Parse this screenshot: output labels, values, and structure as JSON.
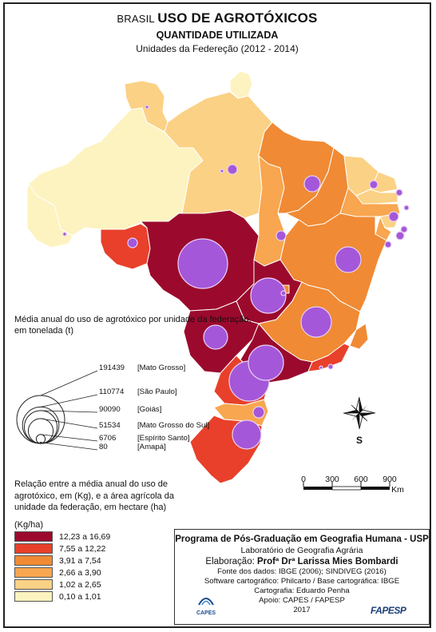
{
  "header": {
    "title_prefix": "BRASIL",
    "title_main": "USO DE AGROTÓXICOS",
    "subtitle": "QUANTIDADE UTILIZADA",
    "period": "Unidades da Federeção (2012 - 2014)"
  },
  "circle_legend": {
    "title": "Média anual do uso de agrotóxico por unidade da federação, em tonelada (t)",
    "entries": [
      {
        "value": 191439,
        "value_text": "191439",
        "label": "[Mato Grosso]"
      },
      {
        "value": 110774,
        "value_text": "110774",
        "label": "[São Paulo]"
      },
      {
        "value": 90090,
        "value_text": "90090",
        "label": "[Goiás]"
      },
      {
        "value": 51534,
        "value_text": "51534",
        "label": "[Mato Grosso do Sul]"
      },
      {
        "value": 6706,
        "value_text": "6706",
        "label": "[Espírito Santo]"
      },
      {
        "value": 80,
        "value_text": "80",
        "label": "[Amapá]"
      }
    ]
  },
  "color_legend": {
    "title": "Relação entre a média anual do uso de agrotóxico, em (Kg), e a área agrícola da unidade da federação, em hectare (ha)",
    "unit": "(Kg/ha)",
    "classes": [
      {
        "label": "12,23 a 16,69",
        "color": "#9b0a2d"
      },
      {
        "label": "7,55 a 12,22",
        "color": "#e8402a"
      },
      {
        "label": "3,91 a 7,54",
        "color": "#f08a34"
      },
      {
        "label": "2,66 a 3,90",
        "color": "#f8a64f"
      },
      {
        "label": "1,02 a 2,65",
        "color": "#fbd185"
      },
      {
        "label": "0,10 a 1,01",
        "color": "#fdf3c0"
      }
    ]
  },
  "scale_bar": {
    "ticks": [
      "0",
      "300",
      "600",
      "900"
    ],
    "unit": "Km"
  },
  "compass": {
    "south_label": "S"
  },
  "credits": {
    "program": "Programa de Pós-Graduação em Geografia Humana - USP",
    "lab": "Laboratório de Geografia Agrária",
    "author_prefix": "Elaboração:",
    "author_name": "Profª Drª Larissa Mies Bombardi",
    "sources": "Fonte dos dados: IBGE (2006); SINDIVEG (2016)",
    "software": "Software cartográfico: Philcarto / Base cartográfica: IBGE",
    "cartography": "Cartografia: Eduardo Penha",
    "support": "Apoio: CAPES / FAPESP",
    "year": "2017",
    "logo_capes": "CAPES",
    "logo_fapesp": "FAPESP"
  },
  "colors": {
    "circle_fill": "#a557d9",
    "circle_stroke": "#e6d0f5",
    "border": "#ffffff"
  }
}
